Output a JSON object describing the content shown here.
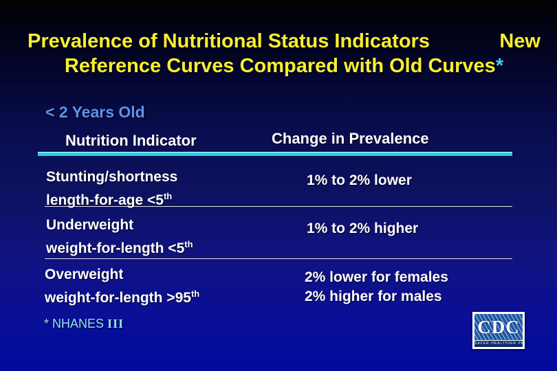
{
  "slide": {
    "title": {
      "line1_left": "Prevalence of Nutritional Status Indicators",
      "line1_right": "New",
      "line2": "Reference Curves Compared with Old Curves",
      "footnote_marker": "*"
    },
    "age_group": "< 2 Years Old",
    "table": {
      "col1_header": "Nutrition Indicator",
      "col2_header": "Change in Prevalence",
      "rows": [
        {
          "name_line1": "Stunting/shortness",
          "name_line2": "length-for-age <5",
          "name_sup": "th",
          "value_line1": "1% to 2% lower",
          "value_line2": ""
        },
        {
          "name_line1": "Underweight",
          "name_line2": "weight-for-length <5",
          "name_sup": "th",
          "value_line1": "1% to 2% higher",
          "value_line2": ""
        },
        {
          "name_line1": "Overweight",
          "name_line2": "weight-for-length >95",
          "name_sup": "th",
          "value_line1": "2% lower for females",
          "value_line2": "2% higher for males"
        }
      ]
    },
    "footnote": {
      "marker": "*",
      "text": "NHANES",
      "numeral": "III"
    },
    "cdc_logo": {
      "acronym": "CDC",
      "tagline": "SAFER·HEALTHIER·PEOPLE"
    },
    "colors": {
      "title_yellow": "#F8EF2F",
      "asterisk_cyan": "#3FD2FF",
      "age_group_blue": "#5B93F0",
      "header_rule_cyan": "#25D2E6",
      "text_white": "#FFFFFF",
      "footnote_cyan": "#8FE6F7",
      "background_top": "#010104",
      "background_bottom": "#000A9C",
      "cdc_blue": "#1D57A5",
      "cdc_tagline_blue": "#0A2A66"
    }
  }
}
